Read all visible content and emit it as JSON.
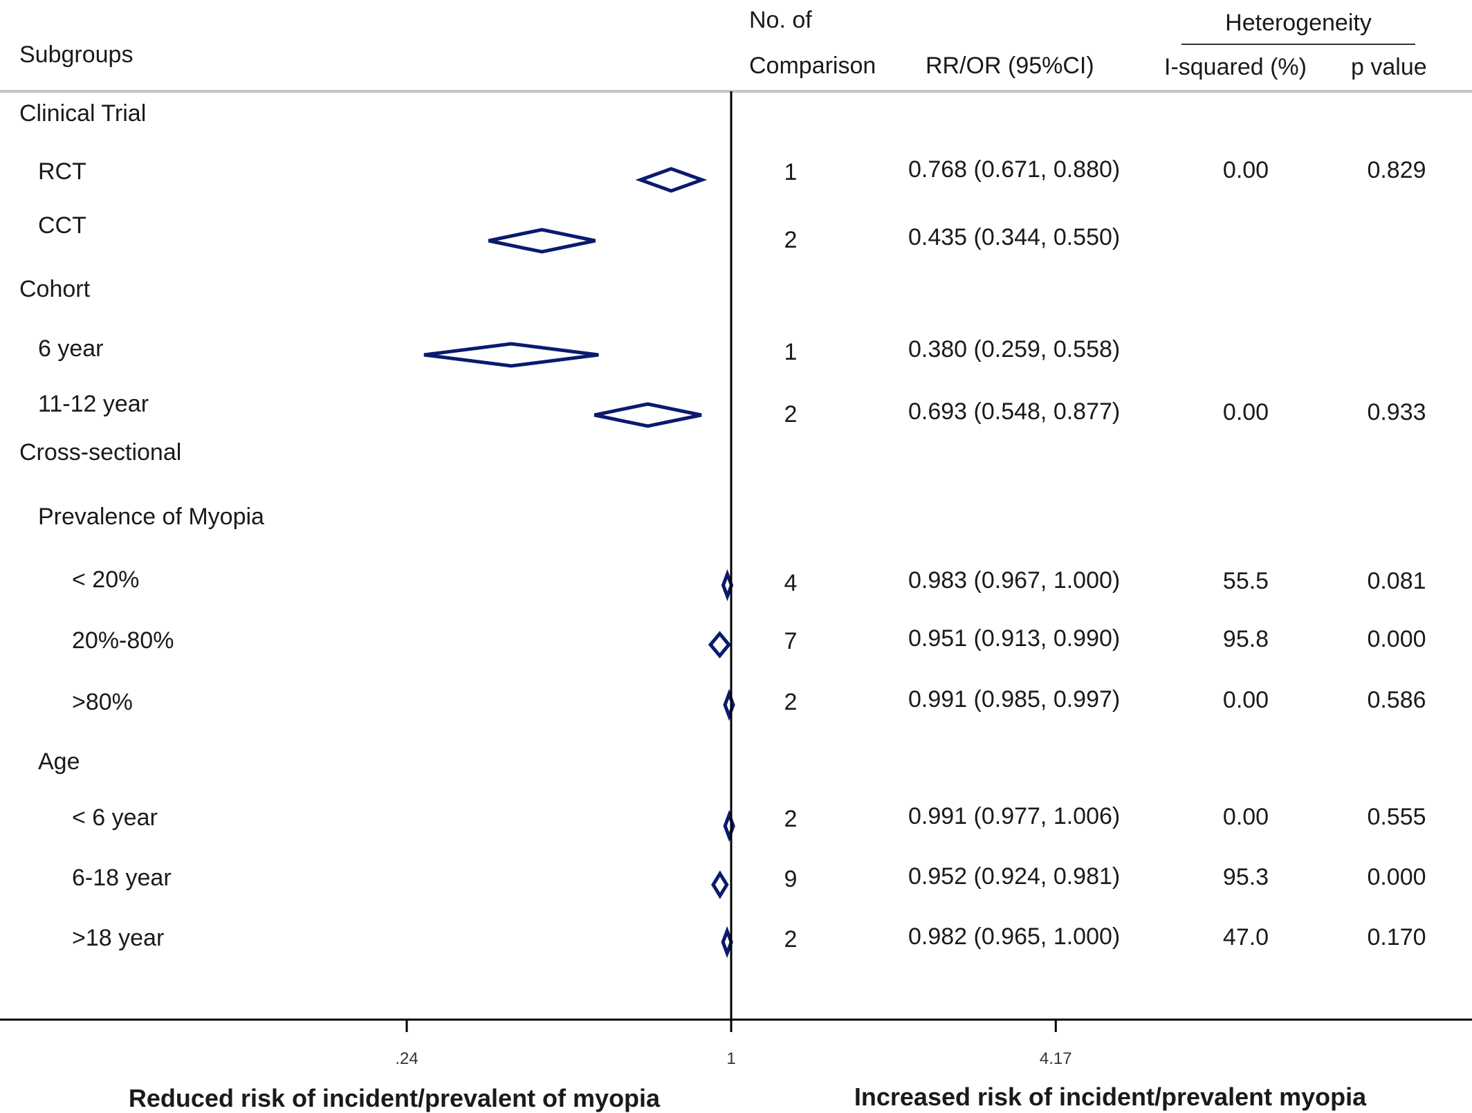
{
  "colors": {
    "diamond": "#0a1a6e",
    "axis": "#000000",
    "header_rule": "#c8bfc8"
  },
  "header": {
    "subgroups": "Subgroups",
    "n_comp_line1": "No. of",
    "n_comp_line2": "Comparison",
    "rr": "RR/OR (95%CI)",
    "heterogeneity": "Heterogeneity",
    "i2": "I-squared (%)",
    "p": "p value"
  },
  "chart_data": {
    "type": "forest",
    "scale": "log",
    "reference_value": 1,
    "x_ticks": [
      {
        "value": 0.24,
        "label": ".24"
      },
      {
        "value": 1,
        "label": "1"
      },
      {
        "value": 4.17,
        "label": "4.17"
      }
    ],
    "left_label": "Reduced risk of incident/prevalent of myopia",
    "right_label": "Increased risk of incident/prevalent myopia",
    "rows": [
      {
        "label": "Clinical Trial",
        "level": 0
      },
      {
        "label": "RCT",
        "level": 1,
        "est": 0.768,
        "lo": 0.671,
        "hi": 0.88,
        "n": "1",
        "ci_text": "0.768 (0.671, 0.880)",
        "i2": "0.00",
        "p": "0.829"
      },
      {
        "label": "CCT",
        "level": 1,
        "est": 0.435,
        "lo": 0.344,
        "hi": 0.55,
        "n": "2",
        "ci_text": "0.435 (0.344, 0.550)",
        "i2": "",
        "p": ""
      },
      {
        "label": "Cohort",
        "level": 0
      },
      {
        "label": "6 year",
        "level": 1,
        "est": 0.38,
        "lo": 0.259,
        "hi": 0.558,
        "n": "1",
        "ci_text": "0.380 (0.259, 0.558)",
        "i2": "",
        "p": ""
      },
      {
        "label": "11-12 year",
        "level": 1,
        "est": 0.693,
        "lo": 0.548,
        "hi": 0.877,
        "n": "2",
        "ci_text": "0.693 (0.548, 0.877)",
        "i2": "0.00",
        "p": "0.933"
      },
      {
        "label": "Cross-sectional",
        "level": 0
      },
      {
        "label": "Prevalence of Myopia",
        "level": 1
      },
      {
        "label": "< 20%",
        "level": 2,
        "est": 0.983,
        "lo": 0.967,
        "hi": 1.0,
        "n": "4",
        "ci_text": "0.983 (0.967, 1.000)",
        "i2": "55.5",
        "p": "0.081"
      },
      {
        "label": "20%-80%",
        "level": 2,
        "est": 0.951,
        "lo": 0.913,
        "hi": 0.99,
        "n": "7",
        "ci_text": "0.951 (0.913, 0.990)",
        "i2": "95.8",
        "p": "0.000"
      },
      {
        "label": ">80%",
        "level": 2,
        "est": 0.991,
        "lo": 0.985,
        "hi": 0.997,
        "n": "2",
        "ci_text": "0.991 (0.985, 0.997)",
        "i2": "0.00",
        "p": "0.586"
      },
      {
        "label": "Age",
        "level": 1
      },
      {
        "label": "< 6 year",
        "level": 2,
        "est": 0.991,
        "lo": 0.977,
        "hi": 1.006,
        "n": "2",
        "ci_text": "0.991 (0.977, 1.006)",
        "i2": "0.00",
        "p": "0.555"
      },
      {
        "label": "6-18 year",
        "level": 2,
        "est": 0.952,
        "lo": 0.924,
        "hi": 0.981,
        "n": "9",
        "ci_text": "0.952 (0.924, 0.981)",
        "i2": "95.3",
        "p": "0.000"
      },
      {
        "label": ">18 year",
        "level": 2,
        "est": 0.982,
        "lo": 0.965,
        "hi": 1.0,
        "n": "2",
        "ci_text": "0.982 (0.965, 1.000)",
        "i2": "47.0",
        "p": "0.170"
      }
    ]
  }
}
